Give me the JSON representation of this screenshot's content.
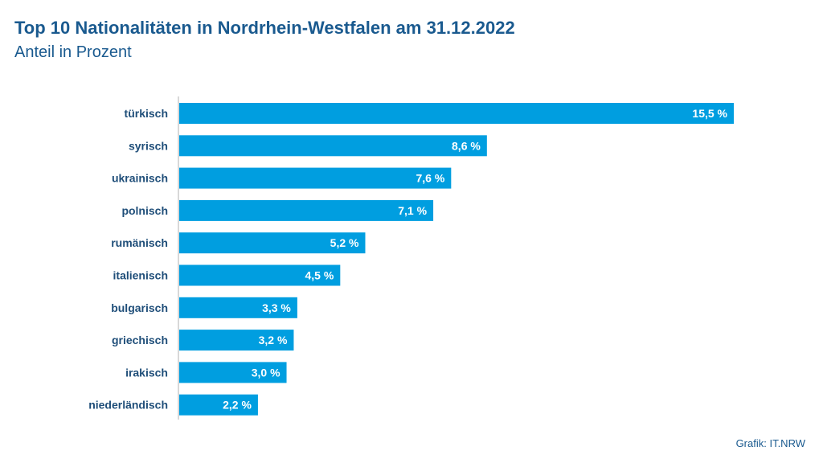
{
  "chart_data": {
    "type": "bar",
    "orientation": "horizontal",
    "title": "Top 10 Nationalitäten in Nordrhein-Westfalen am 31.12.2022",
    "subtitle": "Anteil in Prozent",
    "categories": [
      "türkisch",
      "syrisch",
      "ukrainisch",
      "polnisch",
      "rumänisch",
      "italienisch",
      "bulgarisch",
      "griechisch",
      "irakisch",
      "niederländisch"
    ],
    "values": [
      15.5,
      8.6,
      7.6,
      7.1,
      5.2,
      4.5,
      3.3,
      3.2,
      3.0,
      2.2
    ],
    "value_labels": [
      "15,5 %",
      "8,6 %",
      "7,6 %",
      "7,1 %",
      "5,2 %",
      "4,5 %",
      "3,3 %",
      "3,2 %",
      "3,0 %",
      "2,2 %"
    ],
    "xlim": [
      0,
      15.5
    ],
    "grid": false,
    "bar_color": "#009ee0"
  },
  "source": "Grafik: IT.NRW"
}
